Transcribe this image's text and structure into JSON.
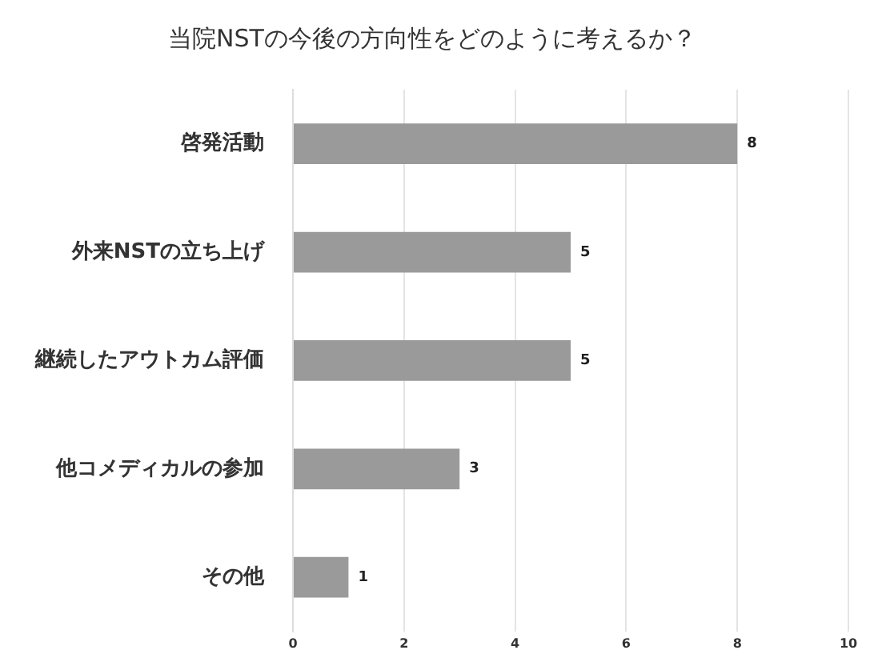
{
  "chart_data": {
    "type": "bar",
    "orientation": "horizontal",
    "title": "当院NSTの今後の方向性をどのように考えるか？",
    "categories": [
      "啓発活動",
      "外来NSTの立ち上げ",
      "継続したアウトカム評価",
      "他コメディカルの参加",
      "その他"
    ],
    "values": [
      8,
      5,
      5,
      3,
      1
    ],
    "color": "#9a9a9a",
    "xlim": [
      0,
      10
    ],
    "xticks": [
      0,
      2,
      4,
      6,
      8,
      10
    ],
    "grid": "x",
    "data_labels": true,
    "legend": false
  }
}
